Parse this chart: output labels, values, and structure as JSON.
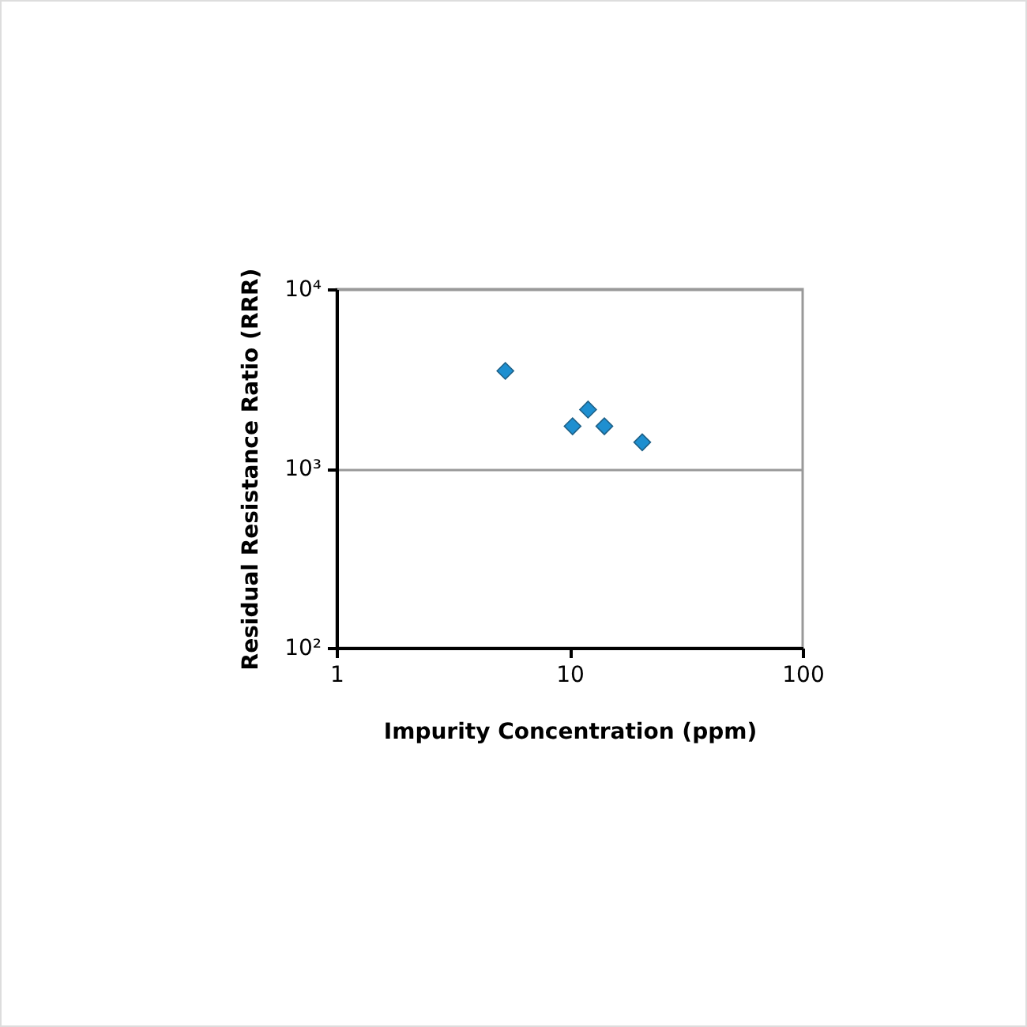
{
  "chart_data": {
    "type": "scatter",
    "xlabel": "Impurity Concentration (ppm)",
    "ylabel": "Residual Resistance Ratio (RRR)",
    "x": [
      5.3,
      10.3,
      12.0,
      14.1,
      20.5
    ],
    "series": [
      {
        "color": "#1e8fd0",
        "values": [
          3500,
          1720,
          2130,
          1720,
          1400
        ]
      }
    ],
    "xlim": [
      1,
      100
    ],
    "xticks": [
      1,
      10,
      100
    ],
    "ylim": [
      100,
      10000
    ],
    "yticks": [
      {
        "value": 100,
        "label": "10²"
      },
      {
        "value": 1000,
        "label": "10³"
      },
      {
        "value": 10000,
        "label": "10⁴"
      }
    ],
    "log": "xy",
    "grid": "y",
    "marker": "diamond"
  }
}
